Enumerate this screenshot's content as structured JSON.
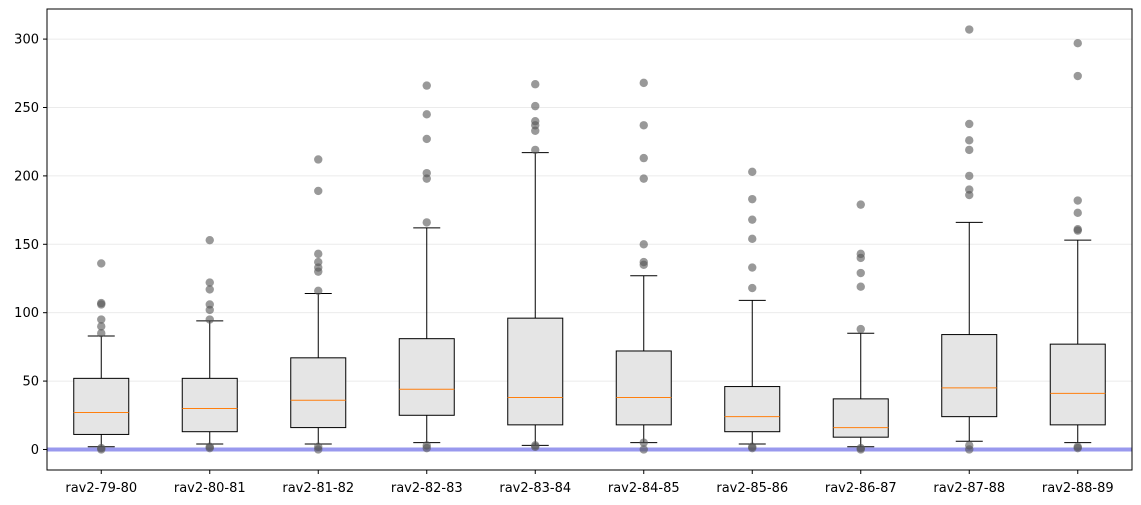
{
  "chart_data": {
    "type": "box",
    "title": "",
    "xlabel": "",
    "ylabel": "",
    "ylim": [
      -15,
      322
    ],
    "yticks": [
      0,
      50,
      100,
      150,
      200,
      250,
      300
    ],
    "grid": "y",
    "reference_line": {
      "y": 0,
      "color": "#9999ee"
    },
    "colors": {
      "box_fill": "#e5e5e5",
      "median": "#ff7f0e",
      "outlier": "#555555",
      "axis": "#000000",
      "grid": "#ebebeb"
    },
    "categories": [
      "rav2-79-80",
      "rav2-80-81",
      "rav2-81-82",
      "rav2-82-83",
      "rav2-83-84",
      "rav2-84-85",
      "rav2-85-86",
      "rav2-86-87",
      "rav2-87-88",
      "rav2-88-89"
    ],
    "boxes": [
      {
        "whisker_low": 2,
        "q1": 11,
        "median": 27,
        "q3": 52,
        "whisker_high": 83,
        "outliers": [
          85,
          90,
          95,
          106,
          107,
          136,
          0,
          1
        ]
      },
      {
        "whisker_low": 4,
        "q1": 13,
        "median": 30,
        "q3": 52,
        "whisker_high": 94,
        "outliers": [
          95,
          102,
          106,
          117,
          122,
          153,
          1,
          2
        ]
      },
      {
        "whisker_low": 4,
        "q1": 16,
        "median": 36,
        "q3": 67,
        "whisker_high": 114,
        "outliers": [
          116,
          130,
          133,
          137,
          143,
          189,
          212,
          0,
          2
        ]
      },
      {
        "whisker_low": 5,
        "q1": 25,
        "median": 44,
        "q3": 81,
        "whisker_high": 162,
        "outliers": [
          166,
          198,
          202,
          227,
          245,
          266,
          1,
          3
        ]
      },
      {
        "whisker_low": 3,
        "q1": 18,
        "median": 38,
        "q3": 96,
        "whisker_high": 217,
        "outliers": [
          219,
          233,
          237,
          240,
          251,
          267,
          2,
          3
        ]
      },
      {
        "whisker_low": 5,
        "q1": 18,
        "median": 38,
        "q3": 72,
        "whisker_high": 127,
        "outliers": [
          135,
          137,
          150,
          198,
          213,
          237,
          268,
          0,
          5
        ]
      },
      {
        "whisker_low": 4,
        "q1": 13,
        "median": 24,
        "q3": 46,
        "whisker_high": 109,
        "outliers": [
          118,
          133,
          154,
          168,
          183,
          203,
          1,
          2
        ]
      },
      {
        "whisker_low": 2,
        "q1": 9,
        "median": 16,
        "q3": 37,
        "whisker_high": 85,
        "outliers": [
          88,
          119,
          129,
          140,
          143,
          179,
          0,
          1
        ]
      },
      {
        "whisker_low": 6,
        "q1": 24,
        "median": 45,
        "q3": 84,
        "whisker_high": 166,
        "outliers": [
          186,
          190,
          200,
          219,
          226,
          238,
          307,
          0,
          3
        ]
      },
      {
        "whisker_low": 5,
        "q1": 18,
        "median": 41,
        "q3": 77,
        "whisker_high": 153,
        "outliers": [
          160,
          161,
          173,
          182,
          273,
          297,
          1,
          2
        ]
      }
    ]
  }
}
